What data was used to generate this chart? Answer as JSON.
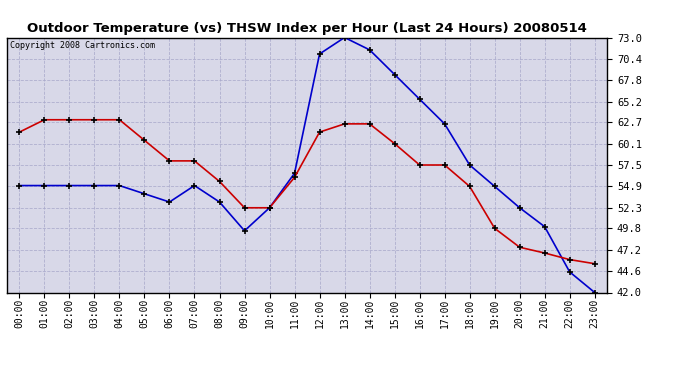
{
  "title": "Outdoor Temperature (vs) THSW Index per Hour (Last 24 Hours) 20080514",
  "copyright": "Copyright 2008 Cartronics.com",
  "hours": [
    0,
    1,
    2,
    3,
    4,
    5,
    6,
    7,
    8,
    9,
    10,
    11,
    12,
    13,
    14,
    15,
    16,
    17,
    18,
    19,
    20,
    21,
    22,
    23
  ],
  "hour_labels": [
    "00:00",
    "01:00",
    "02:00",
    "03:00",
    "04:00",
    "05:00",
    "06:00",
    "07:00",
    "08:00",
    "09:00",
    "10:00",
    "11:00",
    "12:00",
    "13:00",
    "14:00",
    "15:00",
    "16:00",
    "17:00",
    "18:00",
    "19:00",
    "20:00",
    "21:00",
    "22:00",
    "23:00"
  ],
  "red_temp": [
    61.5,
    63.0,
    63.0,
    63.0,
    63.0,
    60.5,
    58.0,
    58.0,
    55.5,
    52.3,
    52.3,
    56.0,
    61.5,
    62.5,
    62.5,
    60.1,
    57.5,
    57.5,
    54.9,
    49.8,
    47.5,
    46.8,
    46.0,
    45.5
  ],
  "blue_thsw": [
    55.0,
    55.0,
    55.0,
    55.0,
    55.0,
    54.0,
    53.0,
    55.0,
    53.0,
    49.5,
    52.3,
    56.5,
    71.0,
    73.0,
    71.5,
    68.5,
    65.5,
    62.5,
    57.5,
    54.9,
    52.3,
    50.0,
    44.5,
    42.0
  ],
  "ylim_min": 42.0,
  "ylim_max": 73.0,
  "yticks": [
    42.0,
    44.6,
    47.2,
    49.8,
    52.3,
    54.9,
    57.5,
    60.1,
    62.7,
    65.2,
    67.8,
    70.4,
    73.0
  ],
  "ytick_labels": [
    "42.0",
    "44.6",
    "47.2",
    "49.8",
    "52.3",
    "54.9",
    "57.5",
    "60.1",
    "62.7",
    "65.2",
    "67.8",
    "70.4",
    "73.0"
  ],
  "red_color": "#cc0000",
  "blue_color": "#0000cc",
  "fig_bg_color": "#ffffff",
  "plot_bg_color": "#d8d8e8",
  "grid_color": "#aaaacc",
  "title_color": "#000000",
  "copyright_color": "#000000"
}
